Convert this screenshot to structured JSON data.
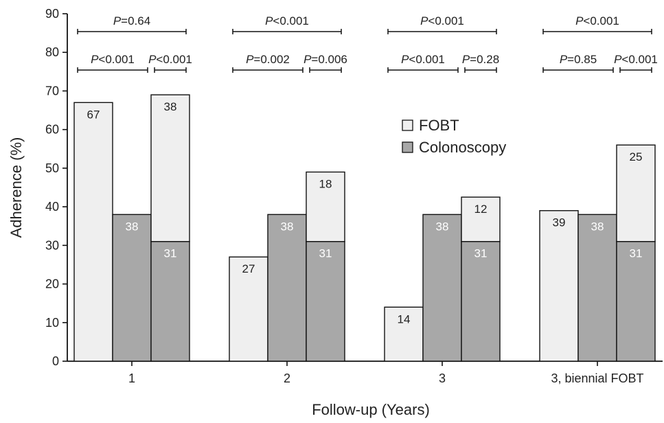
{
  "chart_data": {
    "type": "bar",
    "title": "",
    "ylabel": "Adherence (%)",
    "xlabel": "Follow-up (Years)",
    "ylim": [
      0,
      90
    ],
    "yticks": [
      0,
      10,
      20,
      30,
      40,
      50,
      60,
      70,
      80,
      90
    ],
    "grid": false,
    "legend": {
      "position": "center-right",
      "entries": [
        {
          "label": "FOBT",
          "color": "#efefef"
        },
        {
          "label": "Colonoscopy",
          "color": "#a8a8a8"
        }
      ]
    },
    "colors": {
      "fobt": "#efefef",
      "colonoscopy": "#a8a8a8",
      "outline": "#111111"
    },
    "groups": [
      {
        "label": "1",
        "bars": [
          {
            "fobt": 67,
            "colonoscopy": 0,
            "labels": {
              "fobt": "67"
            }
          },
          {
            "fobt": 0,
            "colonoscopy": 38,
            "labels": {
              "colonoscopy": "38"
            }
          },
          {
            "fobt": 38,
            "colonoscopy": 31,
            "labels": {
              "fobt": "38",
              "colonoscopy": "31"
            }
          }
        ],
        "pvalues": [
          {
            "from": 0,
            "to": 2,
            "level": 0,
            "text": "=0.64"
          },
          {
            "from": 0,
            "to": 1,
            "level": 1,
            "text": "<0.001"
          },
          {
            "from": 2,
            "to": 2,
            "level": 1,
            "text": "<0.001"
          }
        ]
      },
      {
        "label": "2",
        "bars": [
          {
            "fobt": 27,
            "colonoscopy": 0,
            "labels": {
              "fobt": "27"
            }
          },
          {
            "fobt": 0,
            "colonoscopy": 38,
            "labels": {
              "colonoscopy": "38"
            }
          },
          {
            "fobt": 18,
            "colonoscopy": 31,
            "labels": {
              "fobt": "18",
              "colonoscopy": "31"
            }
          }
        ],
        "pvalues": [
          {
            "from": 0,
            "to": 2,
            "level": 0,
            "text": "<0.001"
          },
          {
            "from": 0,
            "to": 1,
            "level": 1,
            "text": "=0.002"
          },
          {
            "from": 2,
            "to": 2,
            "level": 1,
            "text": "=0.006"
          }
        ]
      },
      {
        "label": "3",
        "bars": [
          {
            "fobt": 14,
            "colonoscopy": 0,
            "labels": {
              "fobt": "14"
            }
          },
          {
            "fobt": 0,
            "colonoscopy": 38,
            "labels": {
              "colonoscopy": "38"
            }
          },
          {
            "fobt": 11.5,
            "colonoscopy": 31,
            "labels": {
              "fobt": "12",
              "colonoscopy": "31"
            }
          }
        ],
        "pvalues": [
          {
            "from": 0,
            "to": 2,
            "level": 0,
            "text": "<0.001"
          },
          {
            "from": 0,
            "to": 1,
            "level": 1,
            "text": "<0.001"
          },
          {
            "from": 2,
            "to": 2,
            "level": 1,
            "text": "=0.28"
          }
        ]
      },
      {
        "label": "3, biennial FOBT",
        "bars": [
          {
            "fobt": 39,
            "colonoscopy": 0,
            "labels": {
              "fobt": "39"
            }
          },
          {
            "fobt": 0,
            "colonoscopy": 38,
            "labels": {
              "colonoscopy": "38"
            }
          },
          {
            "fobt": 25,
            "colonoscopy": 31,
            "labels": {
              "fobt": "25",
              "colonoscopy": "31"
            }
          }
        ],
        "pvalues": [
          {
            "from": 0,
            "to": 2,
            "level": 0,
            "text": "<0.001"
          },
          {
            "from": 0,
            "to": 1,
            "level": 1,
            "text": "=0.85"
          },
          {
            "from": 2,
            "to": 2,
            "level": 1,
            "text": "<0.001"
          }
        ]
      }
    ],
    "pvalue_prefix": "P"
  }
}
